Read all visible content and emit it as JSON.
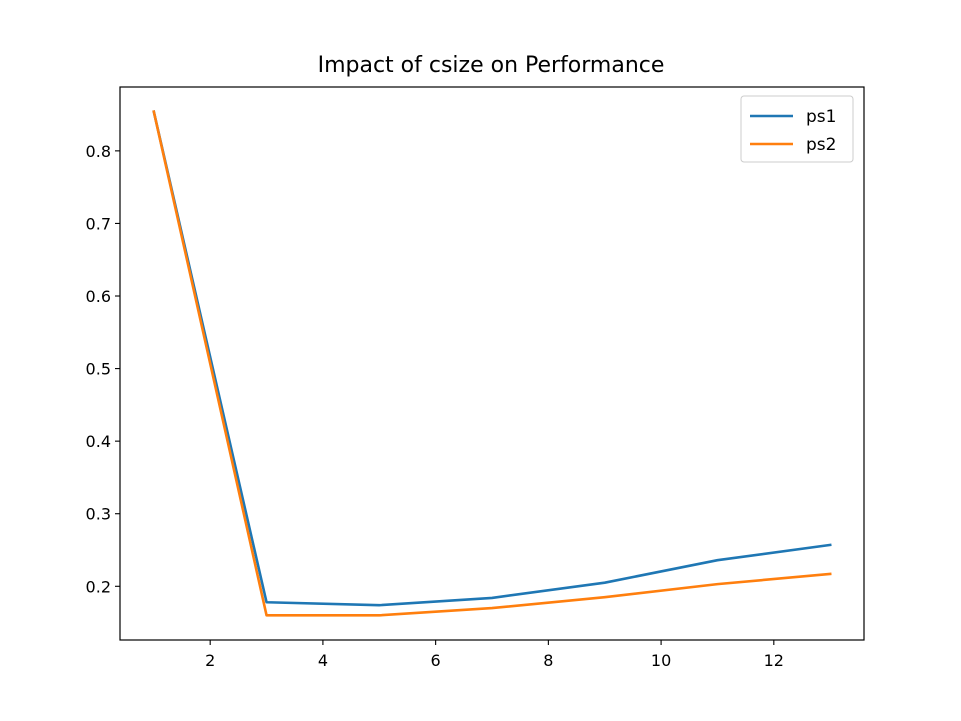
{
  "chart_data": {
    "type": "line",
    "title": "Impact of csize on Performance",
    "xlabel": "",
    "ylabel": "",
    "x": [
      1,
      3,
      5,
      7,
      9,
      11,
      13
    ],
    "series": [
      {
        "name": "ps1",
        "color": "#1f77b4",
        "values": [
          0.854,
          0.178,
          0.174,
          0.184,
          0.205,
          0.236,
          0.257
        ]
      },
      {
        "name": "ps2",
        "color": "#ff7f0e",
        "values": [
          0.854,
          0.16,
          0.16,
          0.17,
          0.185,
          0.203,
          0.217
        ]
      }
    ],
    "xlim": [
      0.4,
      13.6
    ],
    "ylim": [
      0.126,
      0.888
    ],
    "xticks": [
      2,
      4,
      6,
      8,
      10,
      12
    ],
    "yticks": [
      0.2,
      0.3,
      0.4,
      0.5,
      0.6,
      0.7,
      0.8
    ],
    "xtick_labels": [
      "2",
      "4",
      "6",
      "8",
      "10",
      "12"
    ],
    "ytick_labels": [
      "0.2",
      "0.3",
      "0.4",
      "0.5",
      "0.6",
      "0.7",
      "0.8"
    ],
    "grid": false,
    "legend_position": "top-right"
  }
}
